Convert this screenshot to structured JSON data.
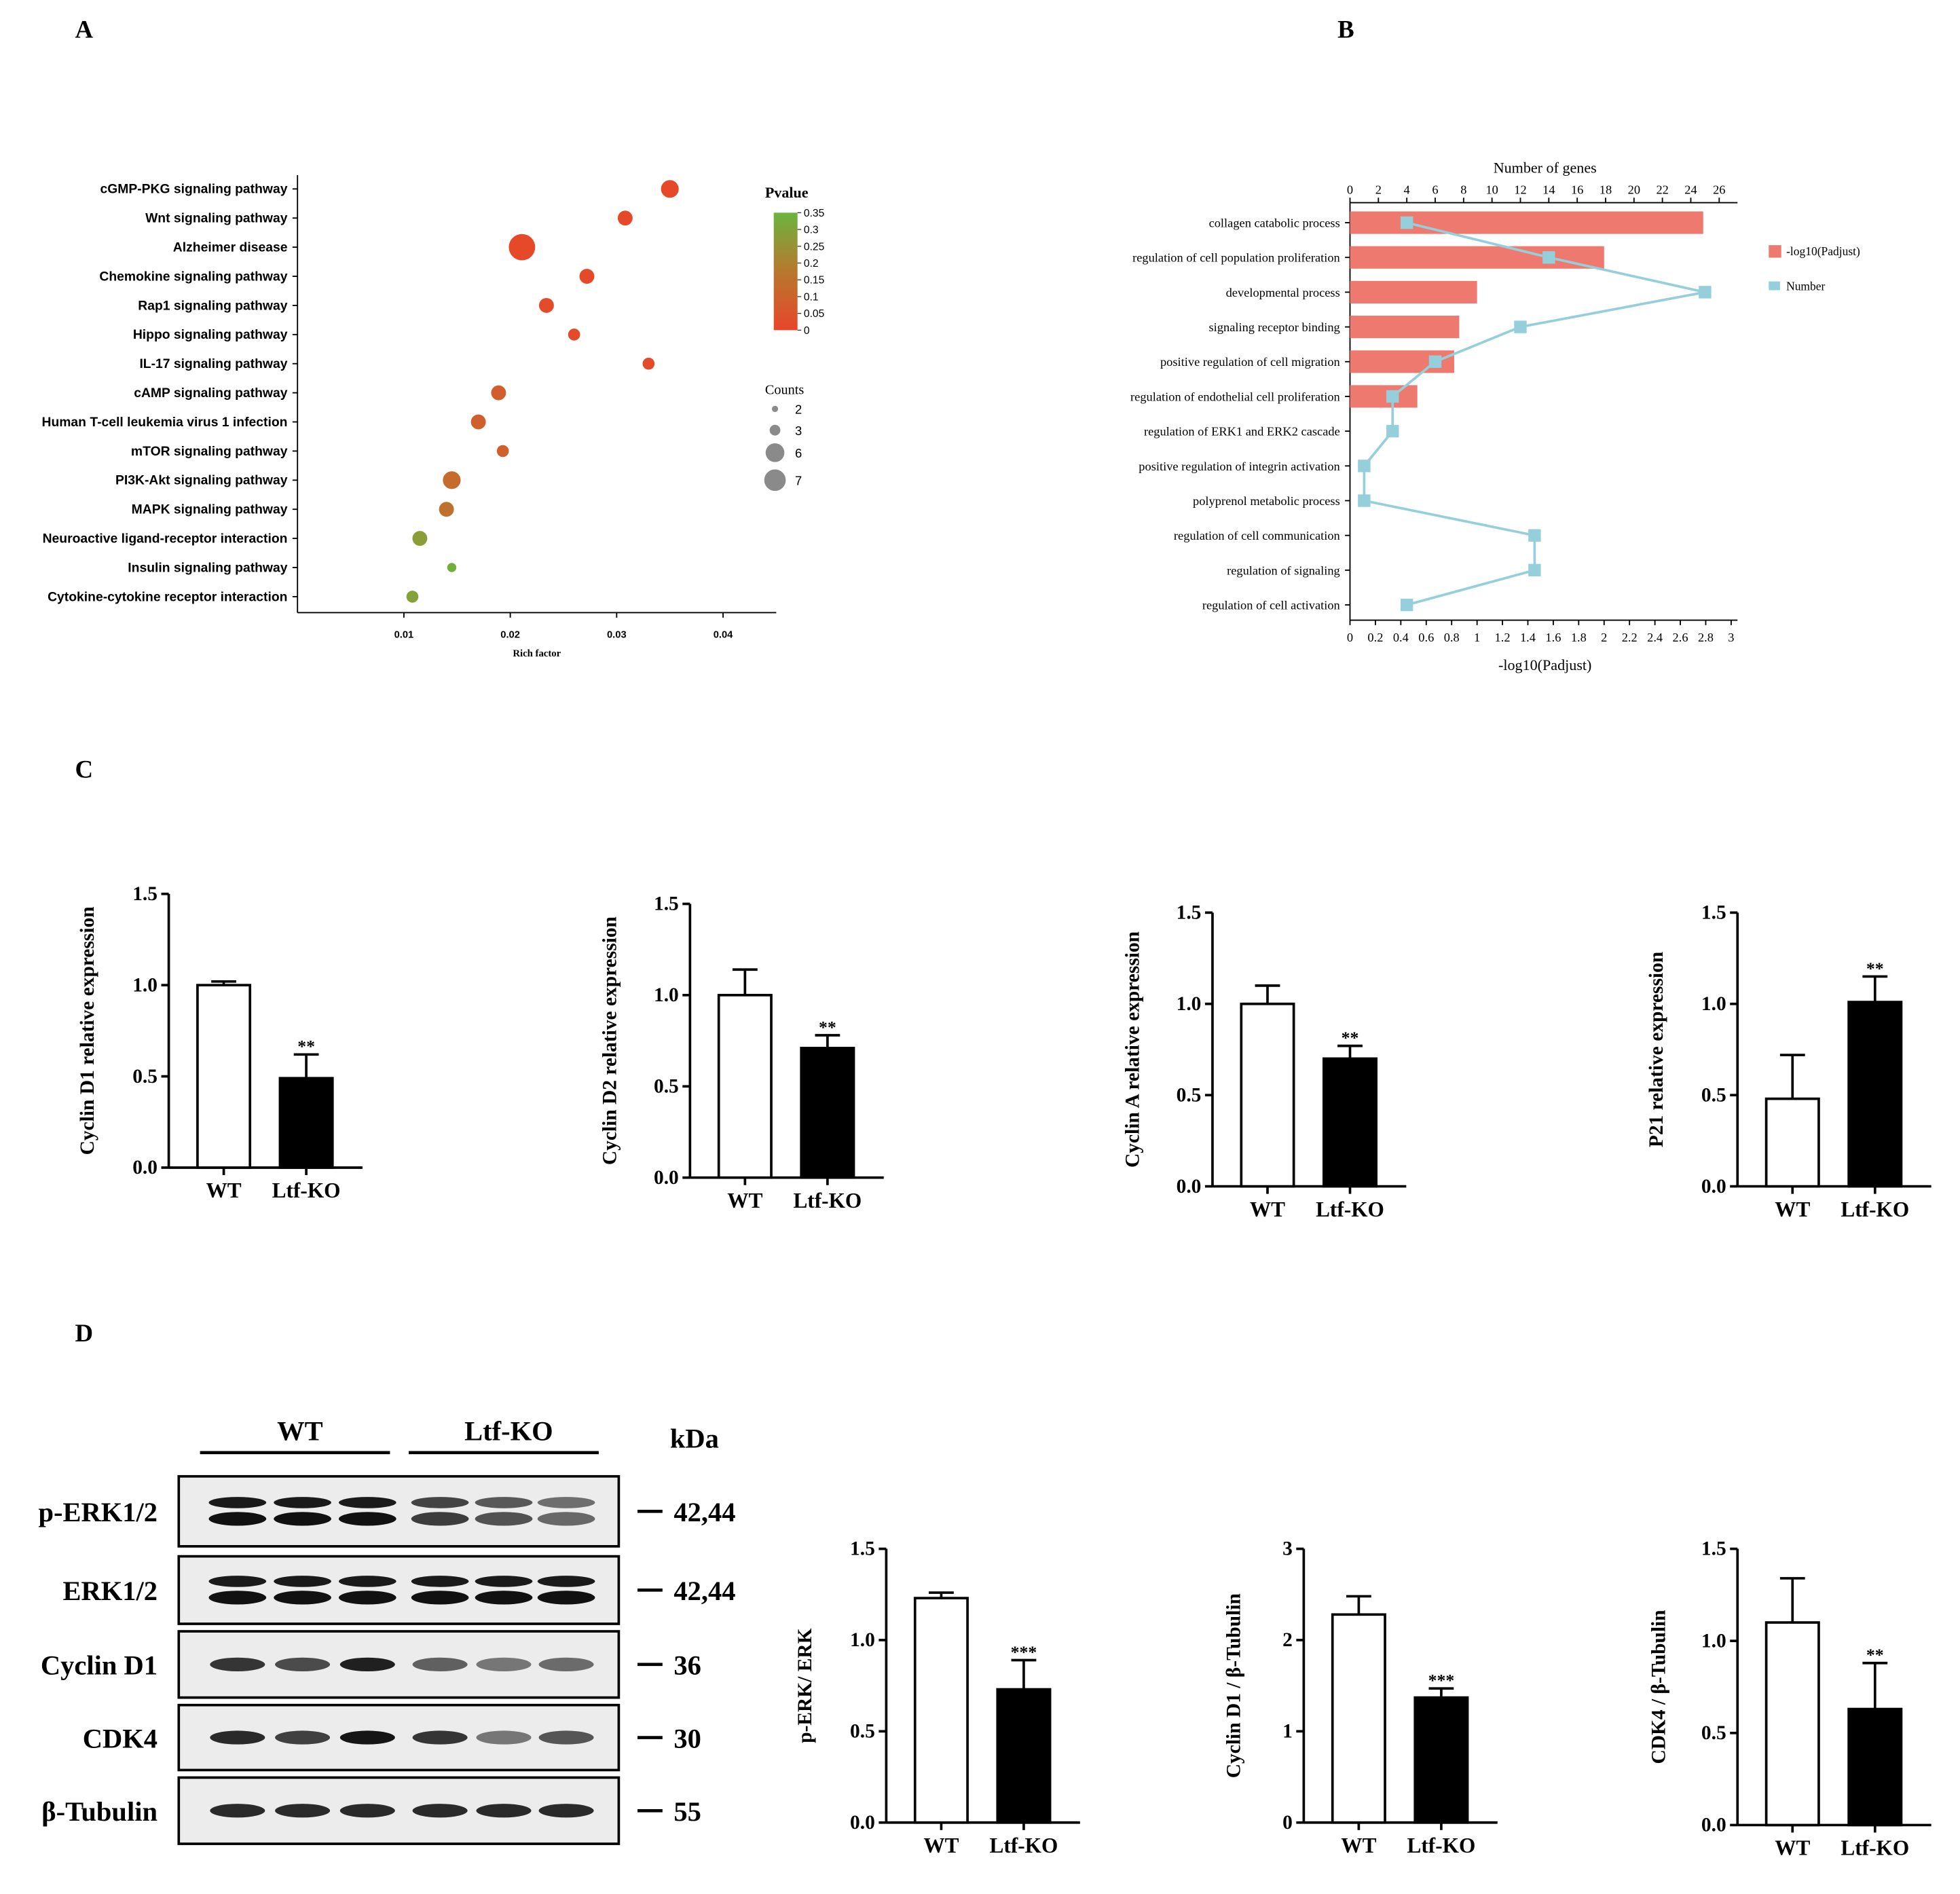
{
  "panels": {
    "a": "A",
    "b": "B",
    "c": "C",
    "d": "D"
  },
  "chart_data": [
    {
      "id": "A",
      "type": "scatter",
      "xlabel": "Rich factor",
      "xlim": [
        0.0,
        0.045
      ],
      "xticks": [
        0.01,
        0.02,
        0.03,
        0.04
      ],
      "xtick_labels": [
        "0.01",
        "0.02",
        "0.03",
        "0.04"
      ],
      "categories": [
        "cGMP-PKG signaling pathway",
        "Wnt signaling pathway",
        "Alzheimer disease",
        "Chemokine signaling pathway",
        "Rap1 signaling pathway",
        "Hippo signaling pathway",
        "IL-17 signaling pathway",
        "cAMP signaling pathway",
        "Human T-cell leukemia virus 1 infection",
        "mTOR signaling pathway",
        "PI3K-Akt signaling pathway",
        "MAPK signaling pathway",
        "Neuroactive ligand-receptor interaction",
        "Insulin signaling pathway",
        "Cytokine-cytokine receptor interaction"
      ],
      "rich_factor": [
        0.035,
        0.0308,
        0.0211,
        0.0272,
        0.0234,
        0.026,
        0.033,
        0.0189,
        0.017,
        0.0193,
        0.0145,
        0.014,
        0.0115,
        0.0145,
        0.0108
      ],
      "counts": [
        4,
        3,
        7,
        3,
        3,
        2,
        2,
        3,
        3,
        2,
        4,
        3,
        3,
        1,
        2
      ],
      "pvalue": [
        0.01,
        0.01,
        0.01,
        0.01,
        0.02,
        0.02,
        0.02,
        0.08,
        0.09,
        0.09,
        0.13,
        0.15,
        0.28,
        0.33,
        0.3
      ],
      "color_legend": {
        "title": "Pvalue",
        "ticks": [
          0.35,
          0.3,
          0.25,
          0.2,
          0.15,
          0.1,
          0.05,
          0
        ],
        "tick_labels": [
          "0.35",
          "0.3",
          "0.25",
          "0.2",
          "0.15",
          "0.1",
          "0.05",
          "0"
        ],
        "colors": [
          "#e8462a",
          "#b7782e",
          "#6ab53e"
        ]
      },
      "size_legend": {
        "title": "Counts",
        "values": [
          2,
          3,
          6,
          7
        ],
        "labels": [
          "2",
          "3",
          "6",
          "7"
        ]
      },
      "dot_stroke": "#9a9a9a"
    },
    {
      "id": "B",
      "type": "bar",
      "top_axis_label": "Number of genes",
      "top_ticks": [
        0,
        2,
        4,
        6,
        8,
        10,
        12,
        14,
        16,
        18,
        20,
        22,
        24,
        26
      ],
      "top_tick_labels": [
        "0",
        "2",
        "4",
        "6",
        "8",
        "10",
        "12",
        "14",
        "16",
        "18",
        "20",
        "22",
        "24",
        "26"
      ],
      "xlabel": "-log10(Padjust)",
      "xlim": [
        0,
        3.05
      ],
      "bottom_ticks": [
        0,
        0.2,
        0.4,
        0.6,
        0.8,
        1,
        1.2,
        1.4,
        1.6,
        1.8,
        2,
        2.2,
        2.4,
        2.6,
        2.8,
        3
      ],
      "bottom_tick_labels": [
        "0",
        "0.2",
        "0.4",
        "0.6",
        "0.8",
        "1",
        "1.2",
        "1.4",
        "1.6",
        "1.8",
        "2",
        "2.2",
        "2.4",
        "2.6",
        "2.8",
        "3"
      ],
      "categories": [
        "collagen catabolic process",
        "regulation of cell population proliferation",
        "developmental process",
        "signaling receptor binding",
        "positive regulation of cell migration",
        "regulation of endothelial cell proliferation",
        "regulation of ERK1 and ERK2 cascade",
        "positive regulation of integrin activation",
        "polyprenol metabolic process",
        "regulation of cell communication",
        "regulation of signaling",
        "regulation of cell activation"
      ],
      "series": [
        {
          "name": "-log10(Padjust)",
          "kind": "bar",
          "color": "#ee7a6f",
          "values": [
            2.78,
            2.0,
            1.0,
            0.86,
            0.82,
            0.53,
            0,
            0,
            0,
            0,
            0,
            0
          ]
        },
        {
          "name": "Number",
          "kind": "line",
          "color": "#94cfdb",
          "values": [
            4,
            14,
            25,
            12,
            6,
            3,
            3,
            1,
            1,
            13,
            13,
            4
          ]
        }
      ]
    },
    {
      "id": "C1",
      "type": "bar",
      "categories": [
        "WT",
        "Ltf-KO"
      ],
      "values": [
        1.0,
        0.49
      ],
      "errors": [
        0.02,
        0.13
      ],
      "significance": [
        "",
        "**"
      ],
      "ylabel": "Cyclin D1 relative expression",
      "ylim": [
        0,
        1.5
      ],
      "yticks": [
        0,
        0.5,
        1.0,
        1.5
      ],
      "ytick_labels": [
        "0.0",
        "0.5",
        "1.0",
        "1.5"
      ]
    },
    {
      "id": "C2",
      "type": "bar",
      "categories": [
        "WT",
        "Ltf-KO"
      ],
      "values": [
        1.0,
        0.71
      ],
      "errors": [
        0.14,
        0.07
      ],
      "significance": [
        "",
        "**"
      ],
      "ylabel": "Cyclin D2 relative expression",
      "ylim": [
        0,
        1.5
      ],
      "yticks": [
        0,
        0.5,
        1.0,
        1.5
      ],
      "ytick_labels": [
        "0.0",
        "0.5",
        "1.0",
        "1.5"
      ]
    },
    {
      "id": "C3",
      "type": "bar",
      "categories": [
        "WT",
        "Ltf-KO"
      ],
      "values": [
        1.0,
        0.7
      ],
      "errors": [
        0.1,
        0.07
      ],
      "significance": [
        "",
        "**"
      ],
      "ylabel": "Cyclin A relative expression",
      "ylim": [
        0,
        1.5
      ],
      "yticks": [
        0,
        0.5,
        1.0,
        1.5
      ],
      "ytick_labels": [
        "0.0",
        "0.5",
        "1.0",
        "1.5"
      ]
    },
    {
      "id": "C4",
      "type": "bar",
      "categories": [
        "WT",
        "Ltf-KO"
      ],
      "values": [
        0.48,
        1.01
      ],
      "errors": [
        0.24,
        0.14
      ],
      "significance": [
        "",
        "**"
      ],
      "ylabel": "P21 relative expression",
      "ylim": [
        0,
        1.5
      ],
      "yticks": [
        0,
        0.5,
        1.0,
        1.5
      ],
      "ytick_labels": [
        "0.0",
        "0.5",
        "1.0",
        "1.5"
      ]
    },
    {
      "id": "D1",
      "type": "bar",
      "categories": [
        "WT",
        "Ltf-KO"
      ],
      "values": [
        1.23,
        0.73
      ],
      "errors": [
        0.03,
        0.16
      ],
      "significance": [
        "",
        "***"
      ],
      "ylabel": "p-ERK/ ERK",
      "ylim": [
        0,
        1.5
      ],
      "yticks": [
        0,
        0.5,
        1.0,
        1.5
      ],
      "ytick_labels": [
        "0.0",
        "0.5",
        "1.0",
        "1.5"
      ]
    },
    {
      "id": "D2",
      "type": "bar",
      "categories": [
        "WT",
        "Ltf-KO"
      ],
      "values": [
        2.28,
        1.37
      ],
      "errors": [
        0.2,
        0.1
      ],
      "significance": [
        "",
        "***"
      ],
      "ylabel": "Cyclin D1 / β-Tubulin",
      "ylim": [
        0,
        3
      ],
      "yticks": [
        0,
        1,
        2,
        3
      ],
      "ytick_labels": [
        "0",
        "1",
        "2",
        "3"
      ]
    },
    {
      "id": "D3",
      "type": "bar",
      "categories": [
        "WT",
        "Ltf-KO"
      ],
      "values": [
        1.1,
        0.63
      ],
      "errors": [
        0.24,
        0.25
      ],
      "significance": [
        "",
        "**"
      ],
      "ylabel": "CDK4 / β-Tubulin",
      "ylim": [
        0,
        1.5
      ],
      "yticks": [
        0,
        0.5,
        1.0,
        1.5
      ],
      "ytick_labels": [
        "0.0",
        "0.5",
        "1.0",
        "1.5"
      ]
    }
  ],
  "western_blot": {
    "groups": [
      "WT",
      "Ltf-KO"
    ],
    "mw_unit": "kDa",
    "rows": [
      {
        "label": "p-ERK1/2",
        "kda": "42,44",
        "double": true,
        "intensity": [
          1,
          1,
          1,
          0.8,
          0.7,
          0.6
        ]
      },
      {
        "label": "ERK1/2",
        "kda": "42,44",
        "double": true,
        "intensity": [
          1,
          1,
          1,
          1,
          1,
          1
        ]
      },
      {
        "label": "Cyclin D1",
        "kda": "36",
        "double": false,
        "intensity": [
          0.85,
          0.75,
          0.95,
          0.65,
          0.55,
          0.6
        ]
      },
      {
        "label": "CDK4",
        "kda": "30",
        "double": false,
        "intensity": [
          0.9,
          0.8,
          1,
          0.85,
          0.55,
          0.7
        ]
      },
      {
        "label": "β-Tubulin",
        "kda": "55",
        "double": false,
        "intensity": [
          0.9,
          0.9,
          0.9,
          0.9,
          0.9,
          0.9
        ]
      }
    ]
  }
}
